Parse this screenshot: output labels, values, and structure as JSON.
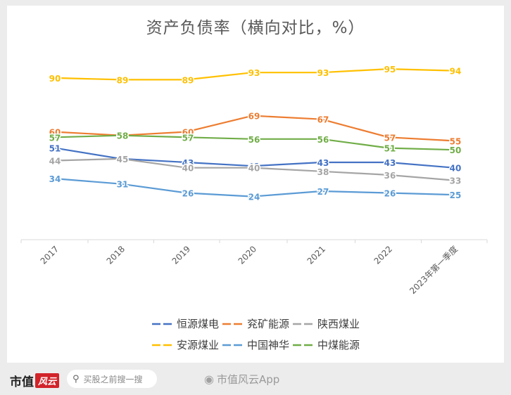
{
  "title": "资产负债率（横向对比，%）",
  "chart_data": {
    "type": "line",
    "title": "资产负债率（横向对比，%）",
    "categories": [
      "2017",
      "2018",
      "2019",
      "2020",
      "2021",
      "2022",
      "2023年第一季度"
    ],
    "ylim": [
      0,
      100
    ],
    "grid": false,
    "legend_position": "bottom",
    "series": [
      {
        "name": "恒源煤电",
        "color": "#4472c4",
        "values": [
          51,
          45,
          43,
          41,
          43,
          43,
          40
        ],
        "label_color": "#4472c4"
      },
      {
        "name": "兖矿能源",
        "color": "#ed7d31",
        "values": [
          60,
          58,
          60,
          69,
          67,
          57,
          55
        ],
        "label_color": "#ed7d31"
      },
      {
        "name": "陕西煤业",
        "color": "#a5a5a5",
        "values": [
          44,
          45,
          40,
          40,
          38,
          36,
          33
        ],
        "label_color": "#a5a5a5"
      },
      {
        "name": "安源煤业",
        "color": "#ffc000",
        "values": [
          90,
          89,
          89,
          93,
          93,
          95,
          94
        ],
        "label_color": "#ffc000"
      },
      {
        "name": "中国神华",
        "color": "#5b9bd5",
        "values": [
          34,
          31,
          26,
          24,
          27,
          26,
          25
        ],
        "label_color": "#5b9bd5"
      },
      {
        "name": "中煤能源",
        "color": "#70ad47",
        "values": [
          57,
          58,
          57,
          56,
          56,
          51,
          50
        ],
        "label_color": "#70ad47"
      }
    ]
  },
  "footer": {
    "brand_name": "市值",
    "brand_badge": "风云",
    "search_placeholder": "买股之前搜一搜",
    "search_icon": "search-icon",
    "weibo_text": "市值风云App",
    "weibo_icon": "weibo-icon"
  }
}
